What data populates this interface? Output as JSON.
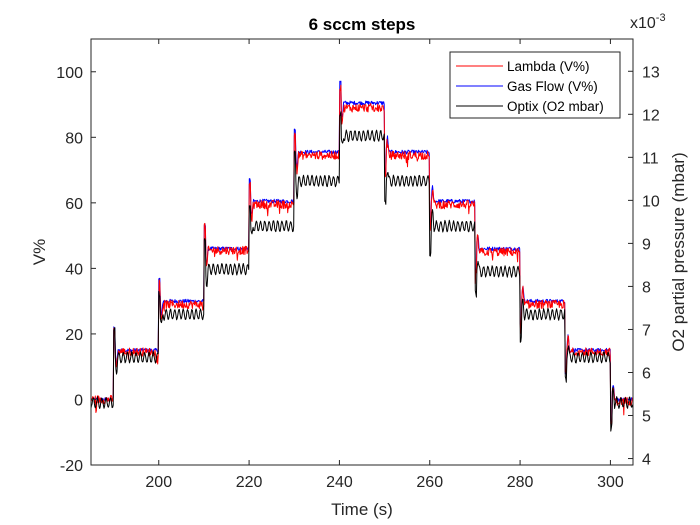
{
  "chart_data": {
    "type": "line",
    "title": "6 sccm steps",
    "xlabel": "Time (s)",
    "ylabel": "V%",
    "y2label": "O2 partial pressure (mbar)",
    "y2_exponent": "x10",
    "y2_exponent_power": "-3",
    "xlim": [
      185,
      305
    ],
    "ylim": [
      -20,
      110
    ],
    "y2lim": [
      3.85,
      13.75
    ],
    "xticks": [
      "200",
      "220",
      "240",
      "260",
      "280",
      "300"
    ],
    "yticks": [
      "-20",
      "0",
      "20",
      "40",
      "60",
      "80",
      "100"
    ],
    "y2ticks": [
      "4",
      "5",
      "6",
      "7",
      "8",
      "9",
      "10",
      "11",
      "12",
      "13"
    ],
    "grid": false,
    "legend_position": "top-right",
    "colors": {
      "lambda": "#ff0000",
      "gasflow": "#0000ff",
      "optix": "#000000",
      "axis": "#262626"
    },
    "series": [
      {
        "name": "Lambda (V%)",
        "axis": "left",
        "steps": [
          {
            "t": 185,
            "v": 0
          },
          {
            "t": 190,
            "v": 14.5
          },
          {
            "t": 200,
            "v": 29
          },
          {
            "t": 210,
            "v": 45.5
          },
          {
            "t": 220,
            "v": 59.5
          },
          {
            "t": 230,
            "v": 74.5
          },
          {
            "t": 240,
            "v": 89
          },
          {
            "t": 250,
            "v": 74.5
          },
          {
            "t": 260,
            "v": 59.5
          },
          {
            "t": 270,
            "v": 45
          },
          {
            "t": 280,
            "v": 29
          },
          {
            "t": 290,
            "v": 14.5
          },
          {
            "t": 300,
            "v": -0.5
          }
        ]
      },
      {
        "name": "Gas Flow (V%)",
        "axis": "left",
        "steps": [
          {
            "t": 185,
            "v": 0
          },
          {
            "t": 190,
            "v": 15
          },
          {
            "t": 200,
            "v": 30
          },
          {
            "t": 210,
            "v": 46
          },
          {
            "t": 220,
            "v": 60.5
          },
          {
            "t": 230,
            "v": 75.5
          },
          {
            "t": 240,
            "v": 90.5
          },
          {
            "t": 250,
            "v": 75.5
          },
          {
            "t": 260,
            "v": 60.5
          },
          {
            "t": 270,
            "v": 46
          },
          {
            "t": 280,
            "v": 30
          },
          {
            "t": 290,
            "v": 15
          },
          {
            "t": 300,
            "v": 0
          }
        ]
      },
      {
        "name": "Optix (O2 mbar)",
        "axis": "right",
        "steps": [
          {
            "t": 185,
            "v": 5.3
          },
          {
            "t": 190,
            "v": 6.35
          },
          {
            "t": 200,
            "v": 7.35
          },
          {
            "t": 210,
            "v": 8.4
          },
          {
            "t": 220,
            "v": 9.4
          },
          {
            "t": 230,
            "v": 10.45
          },
          {
            "t": 240,
            "v": 11.5
          },
          {
            "t": 250,
            "v": 10.45
          },
          {
            "t": 260,
            "v": 9.4
          },
          {
            "t": 270,
            "v": 8.35
          },
          {
            "t": 280,
            "v": 7.35
          },
          {
            "t": 290,
            "v": 6.35
          },
          {
            "t": 300,
            "v": 5.3
          }
        ]
      }
    ]
  }
}
